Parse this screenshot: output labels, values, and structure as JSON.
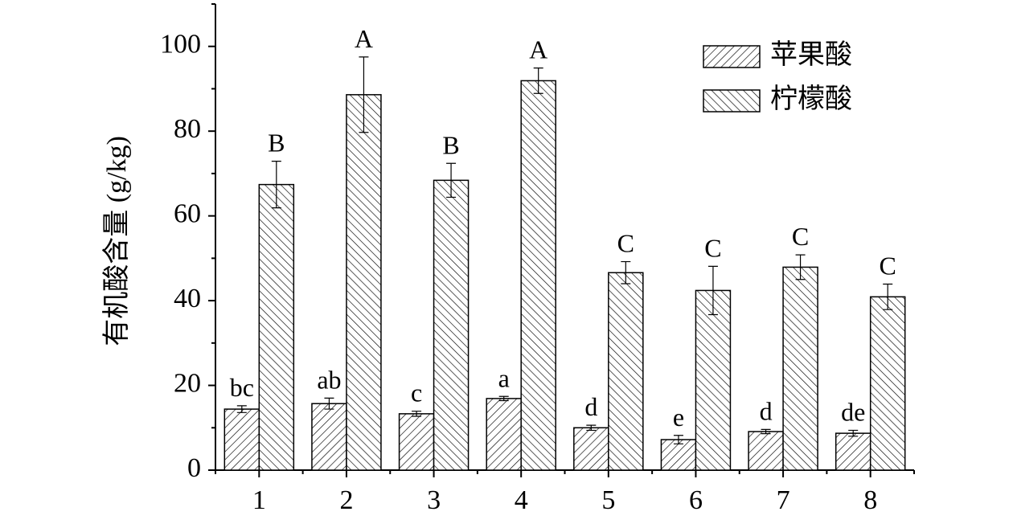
{
  "chart_data": {
    "type": "bar",
    "y_label": "有机酸含量 (g/kg)",
    "categories": [
      "1",
      "2",
      "3",
      "4",
      "5",
      "6",
      "7",
      "8"
    ],
    "ylim": [
      0,
      110
    ],
    "yticks": [
      0,
      20,
      40,
      60,
      80,
      100
    ],
    "series": [
      {
        "name": "苹果酸",
        "color": "#000000",
        "hatch": "forward",
        "values": [
          14.4,
          15.7,
          13.3,
          16.9,
          10.0,
          7.2,
          9.1,
          8.7
        ],
        "errors": [
          0.8,
          1.3,
          0.6,
          0.5,
          0.6,
          1.0,
          0.5,
          0.7
        ],
        "letters": [
          "bc",
          "ab",
          "c",
          "a",
          "d",
          "e",
          "d",
          "de"
        ]
      },
      {
        "name": "柠檬酸",
        "color": "#000000",
        "hatch": "backward",
        "values": [
          67.4,
          88.6,
          68.4,
          91.9,
          46.6,
          42.4,
          47.9,
          40.9
        ],
        "errors": [
          5.5,
          8.9,
          4.0,
          3.0,
          2.6,
          5.7,
          2.9,
          3.0
        ],
        "letters": [
          "B",
          "A",
          "B",
          "A",
          "C",
          "C",
          "C",
          "C"
        ]
      }
    ]
  }
}
